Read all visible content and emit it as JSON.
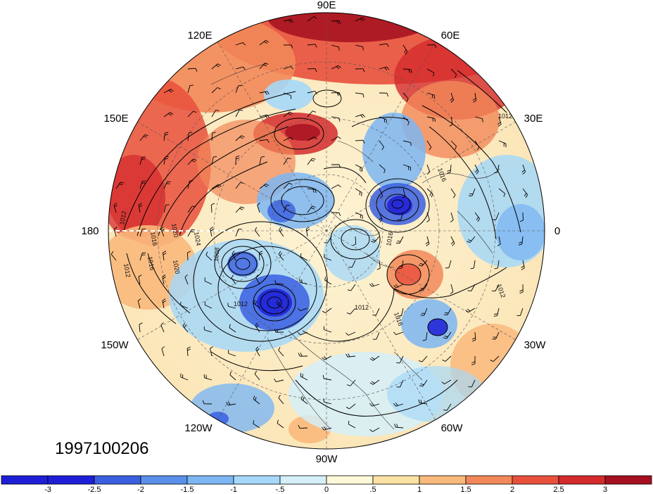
{
  "map": {
    "projection": "north polar stereographic",
    "date_label": "1997100206",
    "longitude_labels": [
      "90E",
      "120E",
      "60E",
      "150E",
      "30E",
      "180",
      "0",
      "150W",
      "30W",
      "120W",
      "60W",
      "90W"
    ],
    "isobar_labels": [
      "1012",
      "1016",
      "1012",
      "1016",
      "1020",
      "1024",
      "1012",
      "1016",
      "1020",
      "1008",
      "1012",
      "1016",
      "1012",
      "1016",
      "1012"
    ],
    "has_wind_barbs": true,
    "has_coastlines": true,
    "has_dateline_marker": true
  },
  "colorbar": {
    "tick_labels": [
      "-3",
      "-2.5",
      "-2",
      "-1.5",
      "-1",
      "-.5",
      "0",
      ".5",
      "1",
      "1.5",
      "2",
      "2.5",
      "3"
    ],
    "colors": [
      "#1d1ed6",
      "#3a5fe0",
      "#5a8fea",
      "#7db6f2",
      "#a6d8f8",
      "#d5eff9",
      "#fdf9d8",
      "#fce1a4",
      "#f9b97c",
      "#f28859",
      "#e8503c",
      "#d42a2d",
      "#a50f1f"
    ]
  }
}
